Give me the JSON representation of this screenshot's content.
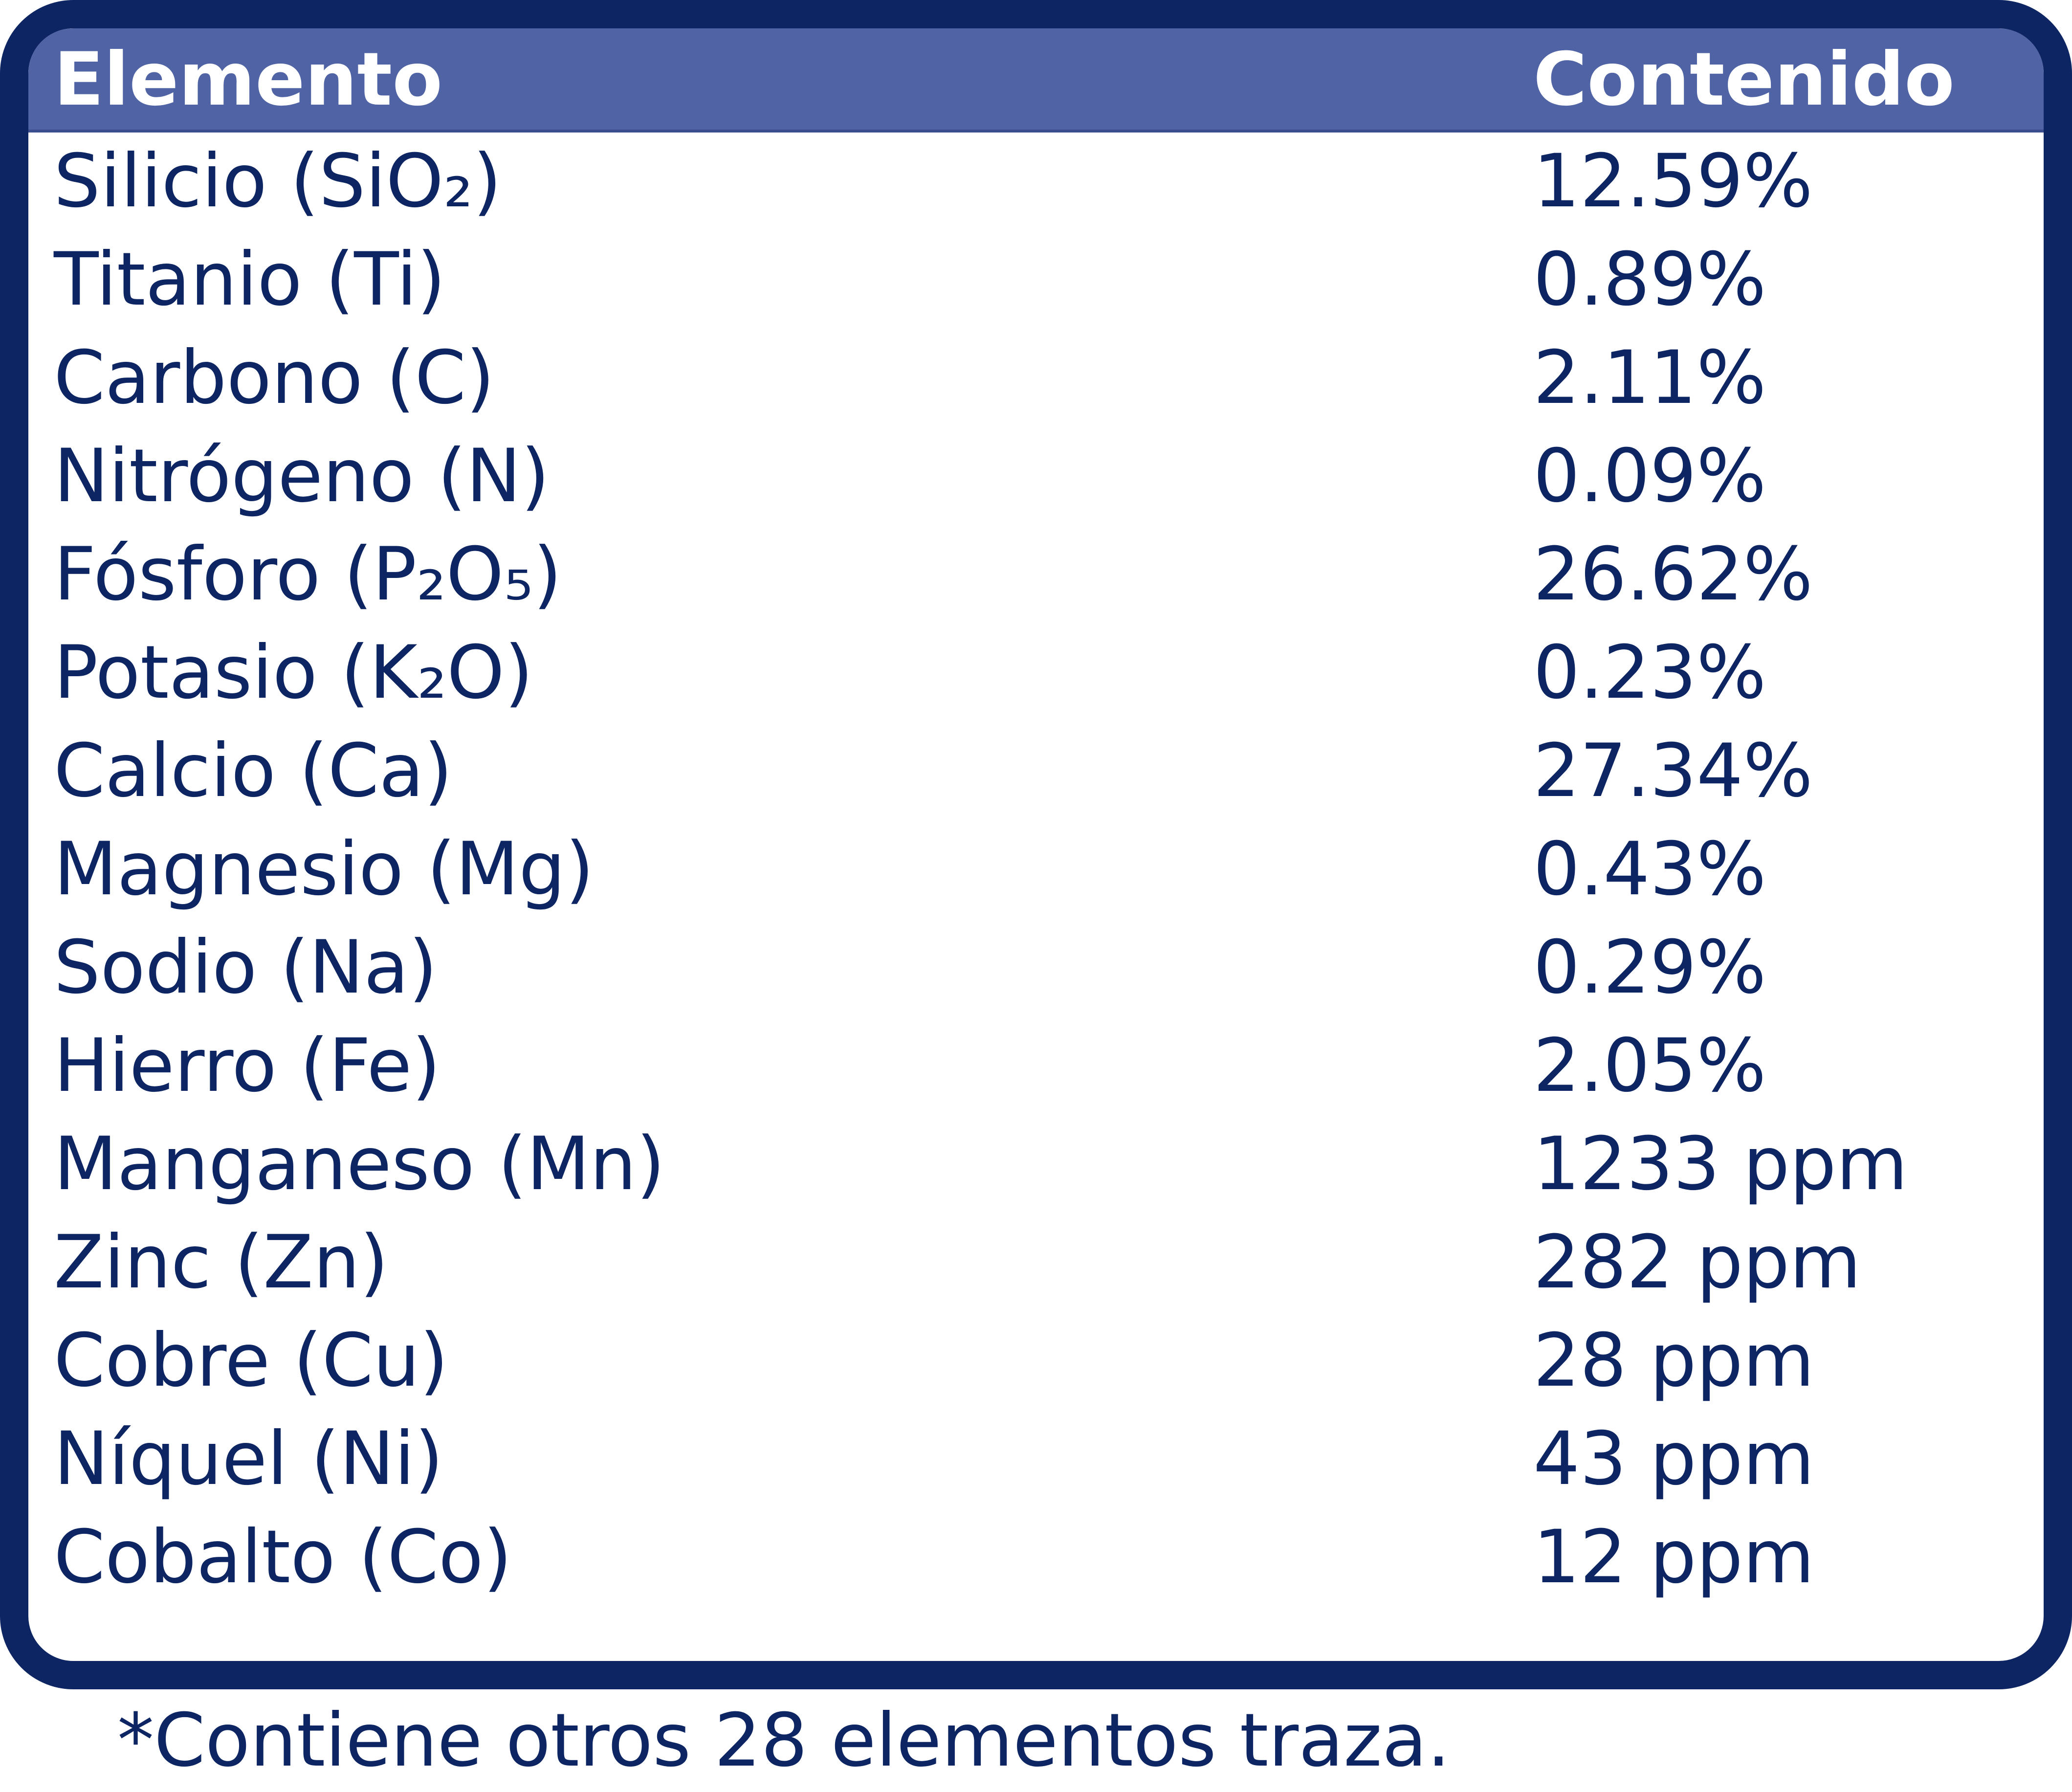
{
  "table": {
    "headers": {
      "element": "Elemento",
      "content": "Contenido"
    },
    "rows": [
      {
        "element": "Silicio (SiO₂)",
        "content": "12.59%"
      },
      {
        "element": "Titanio (Ti)",
        "content": "0.89%"
      },
      {
        "element": "Carbono (C)",
        "content": "2.11%"
      },
      {
        "element": "Nitrógeno (N)",
        "content": "0.09%"
      },
      {
        "element": "Fósforo (P₂O₅)",
        "content": "26.62%"
      },
      {
        "element": "Potasio (K₂O)",
        "content": "0.23%"
      },
      {
        "element": "Calcio (Ca)",
        "content": "27.34%"
      },
      {
        "element": "Magnesio (Mg)",
        "content": "0.43%"
      },
      {
        "element": "Sodio (Na)",
        "content": "0.29%"
      },
      {
        "element": "Hierro (Fe)",
        "content": "2.05%"
      },
      {
        "element": "Manganeso (Mn)",
        "content": "1233 ppm"
      },
      {
        "element": "Zinc (Zn)",
        "content": "282 ppm"
      },
      {
        "element": "Cobre (Cu)",
        "content": "28 ppm"
      },
      {
        "element": "Níquel (Ni)",
        "content": "43 ppm"
      },
      {
        "element": "Cobalto (Co)",
        "content": "12 ppm"
      }
    ],
    "footnote": "*Contiene otros 28 elementos traza."
  },
  "colors": {
    "border": "#0d2562",
    "header_bg": "#4f63a5",
    "text": "#0d2562",
    "header_text": "#ffffff"
  }
}
